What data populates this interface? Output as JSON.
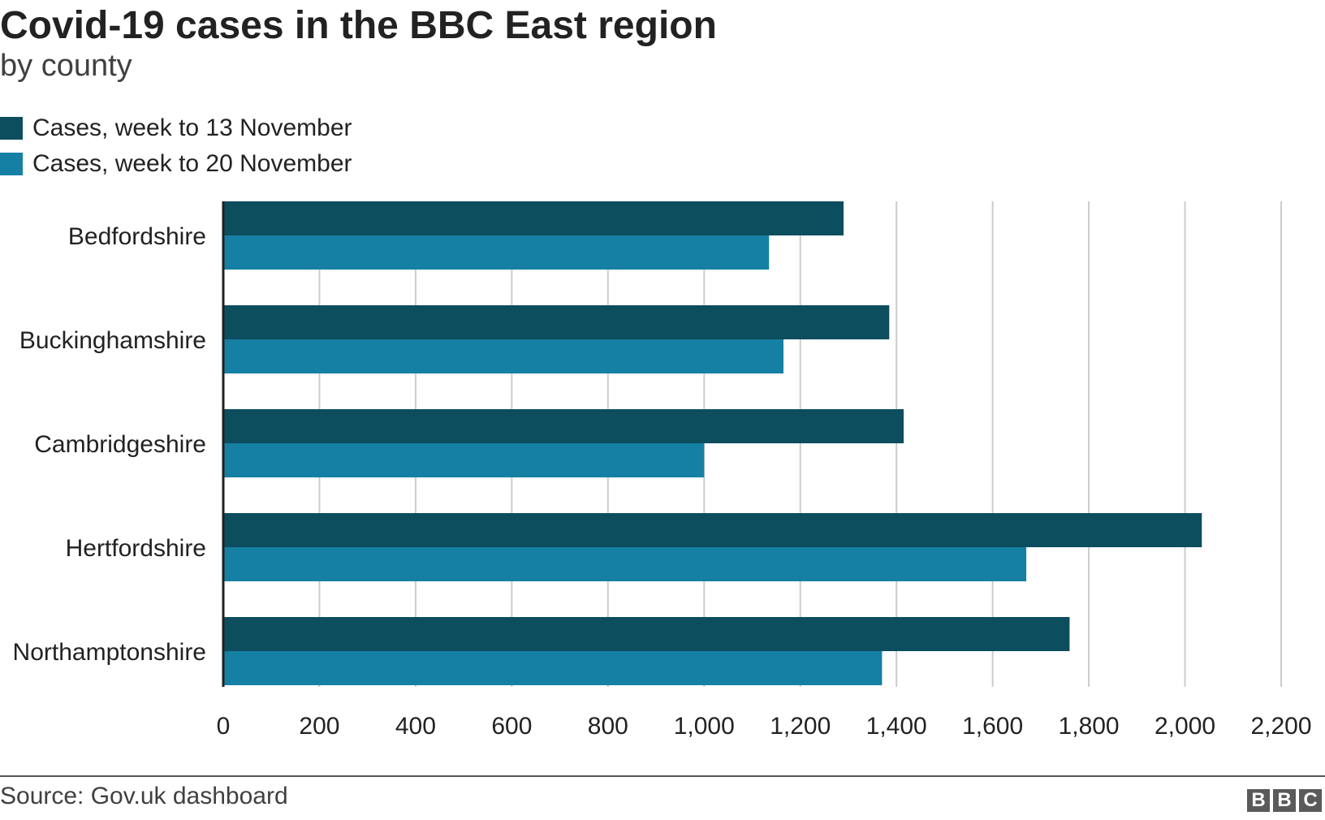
{
  "chart_data": {
    "type": "bar",
    "orientation": "horizontal",
    "title": "Covid-19 cases in the BBC East region",
    "subtitle": "by county",
    "categories": [
      "Bedfordshire",
      "Buckinghamshire",
      "Cambridgeshire",
      "Hertfordshire",
      "Northamptonshire"
    ],
    "series": [
      {
        "name": "Cases, week to 13 November",
        "color": "#0c4d5e",
        "values": [
          1290,
          1385,
          1415,
          2035,
          1760
        ]
      },
      {
        "name": "Cases, week to 20 November",
        "color": "#1580a3",
        "values": [
          1135,
          1165,
          1000,
          1670,
          1370
        ]
      }
    ],
    "xlim": [
      0,
      2200
    ],
    "xticks": [
      0,
      200,
      400,
      600,
      800,
      1000,
      1200,
      1400,
      1600,
      1800,
      2000,
      2200
    ],
    "xtick_labels": [
      "0",
      "200",
      "400",
      "600",
      "800",
      "1,000",
      "1,200",
      "1,400",
      "1,600",
      "1,800",
      "2,000",
      "2,200"
    ],
    "grid": true,
    "legend_position": "top-left"
  },
  "source": "Source: Gov.uk dashboard",
  "logo": {
    "letters": [
      "B",
      "B",
      "C"
    ]
  }
}
